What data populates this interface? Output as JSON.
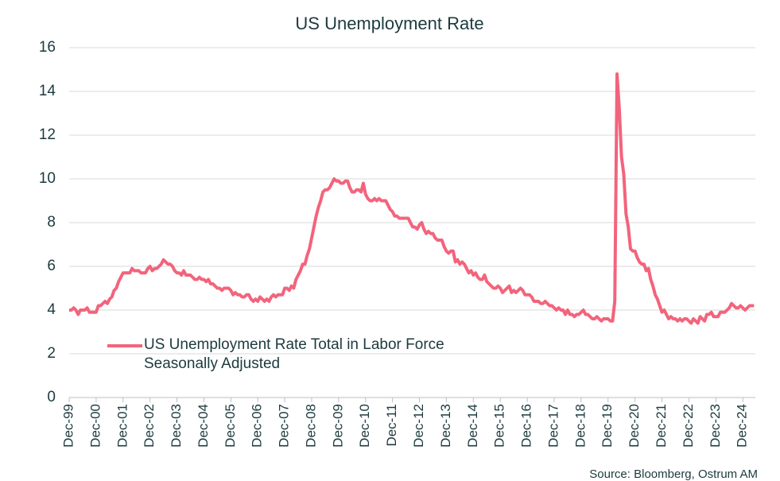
{
  "chart_data": {
    "type": "line",
    "title": "US Unemployment Rate",
    "source": "Source: Bloomberg, Ostrum AM",
    "legend": "lower left",
    "grid": true,
    "ylim": [
      0,
      16
    ],
    "yticks": [
      0,
      2,
      4,
      6,
      8,
      10,
      12,
      14,
      16
    ],
    "categories": [
      "Dec-99",
      null,
      null,
      null,
      null,
      null,
      null,
      null,
      null,
      null,
      null,
      null,
      "Dec-00",
      null,
      null,
      null,
      null,
      null,
      null,
      null,
      null,
      null,
      null,
      null,
      "Dec-01",
      null,
      null,
      null,
      null,
      null,
      null,
      null,
      null,
      null,
      null,
      null,
      "Dec-02",
      null,
      null,
      null,
      null,
      null,
      null,
      null,
      null,
      null,
      null,
      null,
      "Dec-03",
      null,
      null,
      null,
      null,
      null,
      null,
      null,
      null,
      null,
      null,
      null,
      "Dec-04",
      null,
      null,
      null,
      null,
      null,
      null,
      null,
      null,
      null,
      null,
      null,
      "Dec-05",
      null,
      null,
      null,
      null,
      null,
      null,
      null,
      null,
      null,
      null,
      null,
      "Dec-06",
      null,
      null,
      null,
      null,
      null,
      null,
      null,
      null,
      null,
      null,
      null,
      "Dec-07",
      null,
      null,
      null,
      null,
      null,
      null,
      null,
      null,
      null,
      null,
      null,
      "Dec-08",
      null,
      null,
      null,
      null,
      null,
      null,
      null,
      null,
      null,
      null,
      null,
      "Dec-09",
      null,
      null,
      null,
      null,
      null,
      null,
      null,
      null,
      null,
      null,
      null,
      "Dec-10",
      null,
      null,
      null,
      null,
      null,
      null,
      null,
      null,
      null,
      null,
      null,
      "Dec-11",
      null,
      null,
      null,
      null,
      null,
      null,
      null,
      null,
      null,
      null,
      null,
      "Dec-12",
      null,
      null,
      null,
      null,
      null,
      null,
      null,
      null,
      null,
      null,
      null,
      "Dec-13",
      null,
      null,
      null,
      null,
      null,
      null,
      null,
      null,
      null,
      null,
      null,
      "Dec-14",
      null,
      null,
      null,
      null,
      null,
      null,
      null,
      null,
      null,
      null,
      null,
      "Dec-15",
      null,
      null,
      null,
      null,
      null,
      null,
      null,
      null,
      null,
      null,
      null,
      "Dec-16",
      null,
      null,
      null,
      null,
      null,
      null,
      null,
      null,
      null,
      null,
      null,
      "Dec-17",
      null,
      null,
      null,
      null,
      null,
      null,
      null,
      null,
      null,
      null,
      null,
      "Dec-18",
      null,
      null,
      null,
      null,
      null,
      null,
      null,
      null,
      null,
      null,
      null,
      "Dec-19",
      null,
      null,
      null,
      null,
      null,
      null,
      null,
      null,
      null,
      null,
      null,
      "Dec-20",
      null,
      null,
      null,
      null,
      null,
      null,
      null,
      null,
      null,
      null,
      null,
      "Dec-21",
      null,
      null,
      null,
      null,
      null,
      null,
      null,
      null,
      null,
      null,
      null,
      "Dec-22",
      null,
      null,
      null,
      null,
      null,
      null,
      null,
      null,
      null,
      null,
      null,
      "Dec-23",
      null,
      null,
      null,
      null,
      null,
      null,
      null,
      null,
      null,
      null,
      null,
      "Dec-24",
      null,
      null,
      null,
      null,
      null
    ],
    "series": [
      {
        "name": "US Unemployment Rate Total in Labor Force Seasonally Adjusted",
        "color": "#f2647c",
        "values": [
          4.0,
          4.0,
          4.1,
          4.0,
          3.8,
          4.0,
          4.0,
          4.0,
          4.1,
          3.9,
          3.9,
          3.9,
          3.9,
          4.2,
          4.2,
          4.3,
          4.4,
          4.3,
          4.5,
          4.6,
          4.9,
          5.0,
          5.3,
          5.5,
          5.7,
          5.7,
          5.7,
          5.7,
          5.9,
          5.8,
          5.8,
          5.8,
          5.7,
          5.7,
          5.7,
          5.9,
          6.0,
          5.8,
          5.9,
          5.9,
          6.0,
          6.1,
          6.3,
          6.2,
          6.1,
          6.1,
          6.0,
          5.8,
          5.7,
          5.7,
          5.6,
          5.8,
          5.6,
          5.6,
          5.6,
          5.5,
          5.4,
          5.4,
          5.5,
          5.4,
          5.4,
          5.3,
          5.4,
          5.2,
          5.2,
          5.1,
          5.0,
          5.0,
          4.9,
          5.0,
          5.0,
          5.0,
          4.9,
          4.7,
          4.8,
          4.7,
          4.7,
          4.6,
          4.6,
          4.7,
          4.7,
          4.5,
          4.4,
          4.5,
          4.4,
          4.6,
          4.5,
          4.4,
          4.5,
          4.4,
          4.6,
          4.7,
          4.6,
          4.7,
          4.7,
          4.7,
          5.0,
          5.0,
          4.9,
          5.1,
          5.0,
          5.4,
          5.6,
          5.8,
          6.1,
          6.1,
          6.5,
          6.8,
          7.3,
          7.8,
          8.3,
          8.7,
          9.0,
          9.4,
          9.5,
          9.5,
          9.6,
          9.8,
          10.0,
          9.9,
          9.9,
          9.8,
          9.8,
          9.9,
          9.9,
          9.6,
          9.4,
          9.4,
          9.5,
          9.5,
          9.4,
          9.8,
          9.3,
          9.1,
          9.0,
          9.0,
          9.1,
          9.0,
          9.1,
          9.0,
          9.0,
          9.0,
          8.8,
          8.6,
          8.5,
          8.3,
          8.3,
          8.2,
          8.2,
          8.2,
          8.2,
          8.2,
          8.0,
          7.8,
          7.8,
          7.7,
          7.9,
          8.0,
          7.7,
          7.5,
          7.6,
          7.5,
          7.5,
          7.3,
          7.2,
          7.2,
          7.2,
          6.9,
          6.7,
          6.6,
          6.7,
          6.7,
          6.2,
          6.3,
          6.1,
          6.2,
          6.1,
          5.9,
          5.7,
          5.8,
          5.6,
          5.7,
          5.5,
          5.4,
          5.4,
          5.6,
          5.3,
          5.2,
          5.1,
          5.0,
          5.0,
          5.1,
          5.0,
          4.8,
          4.9,
          5.0,
          5.1,
          4.8,
          4.9,
          4.8,
          4.9,
          5.0,
          4.9,
          4.7,
          4.7,
          4.7,
          4.6,
          4.4,
          4.4,
          4.4,
          4.3,
          4.3,
          4.4,
          4.3,
          4.2,
          4.2,
          4.1,
          4.0,
          4.1,
          4.0,
          4.0,
          3.8,
          4.0,
          3.8,
          3.8,
          3.7,
          3.8,
          3.8,
          3.9,
          4.0,
          3.8,
          3.8,
          3.7,
          3.6,
          3.6,
          3.7,
          3.6,
          3.5,
          3.6,
          3.6,
          3.6,
          3.5,
          3.5,
          4.4,
          14.8,
          13.2,
          11.0,
          10.2,
          8.4,
          7.8,
          6.8,
          6.7,
          6.7,
          6.4,
          6.2,
          6.1,
          6.1,
          5.8,
          5.9,
          5.4,
          5.1,
          4.7,
          4.5,
          4.2,
          3.9,
          4.0,
          3.8,
          3.6,
          3.7,
          3.6,
          3.6,
          3.5,
          3.6,
          3.5,
          3.6,
          3.6,
          3.5,
          3.4,
          3.6,
          3.5,
          3.4,
          3.7,
          3.6,
          3.5,
          3.8,
          3.8,
          3.9,
          3.7,
          3.7,
          3.7,
          3.9,
          3.9,
          3.9,
          4.0,
          4.1,
          4.3,
          4.2,
          4.1,
          4.1,
          4.2,
          4.1,
          4.0,
          4.1,
          4.2,
          4.2,
          4.2
        ]
      }
    ]
  }
}
